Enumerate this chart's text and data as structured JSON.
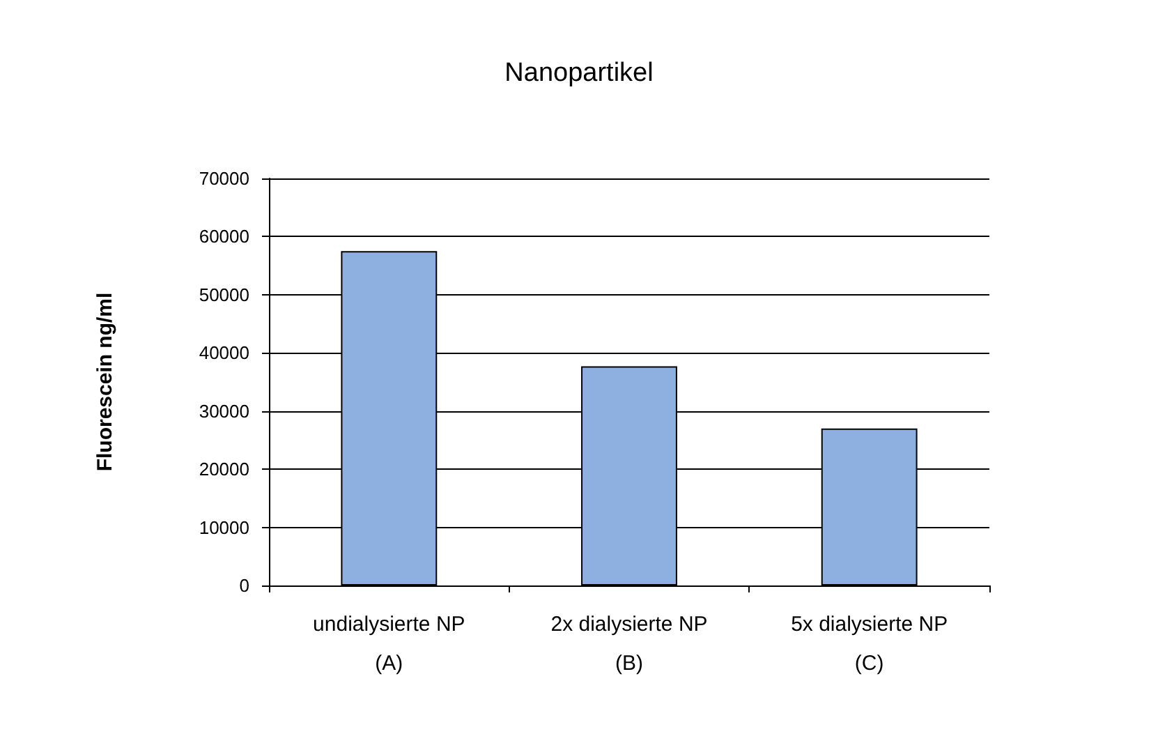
{
  "chart_data": {
    "type": "bar",
    "title": "Nanopartikel",
    "ylabel": "Fluorescein ng/ml",
    "categories": [
      "undialysierte NP\n(A)",
      "2x dialysierte NP\n(B)",
      "5x dialysierte NP\n(C)"
    ],
    "values": [
      57500,
      37700,
      27000
    ],
    "color": "#8eb0e0",
    "ylim": [
      0,
      70000
    ],
    "yticks": [
      0,
      10000,
      20000,
      30000,
      40000,
      50000,
      60000,
      70000
    ],
    "grid": "y"
  }
}
